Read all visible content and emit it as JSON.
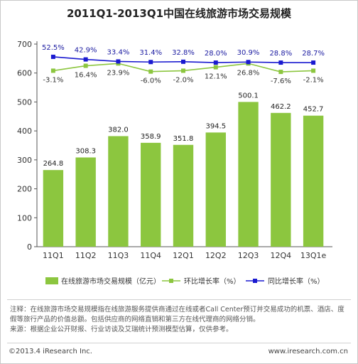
{
  "title": "2011Q1-2013Q1中国在线旅游市场交易规模",
  "chart_data": {
    "type": "bar",
    "categories": [
      "11Q1",
      "11Q2",
      "11Q3",
      "11Q4",
      "12Q1",
      "12Q2",
      "12Q3",
      "12Q4",
      "13Q1e"
    ],
    "ylim": [
      0,
      700
    ],
    "yticks": [
      "0",
      "100",
      "200",
      "300",
      "400",
      "500",
      "600",
      "700"
    ],
    "grid": false,
    "legend_position": "bottom",
    "series": [
      {
        "name": "在线旅游市场交易规模（亿元）",
        "kind": "bar",
        "color": "#8cc63f",
        "values": [
          264.8,
          308.3,
          382.0,
          358.9,
          351.8,
          394.5,
          500.1,
          462.2,
          452.7
        ],
        "labels": [
          "264.8",
          "308.3",
          "382.0",
          "358.9",
          "351.8",
          "394.5",
          "500.1",
          "462.2",
          "452.7"
        ]
      },
      {
        "name": "环比增长率（%）",
        "kind": "line",
        "color": "#8cc63f",
        "rates": [
          "-3.1%",
          "16.4%",
          "23.9%",
          "-6.0%",
          "-2.0%",
          "12.1%",
          "26.8%",
          "-7.6%",
          "-2.1%"
        ],
        "plot_y": [
          608,
          625,
          633,
          605,
          608,
          620,
          633,
          604,
          608
        ]
      },
      {
        "name": "同比增长率（%）",
        "kind": "line",
        "color": "#1a1ad0",
        "rates": [
          "52.5%",
          "42.9%",
          "33.4%",
          "31.4%",
          "32.8%",
          "28.0%",
          "30.9%",
          "28.8%",
          "28.7%"
        ],
        "plot_y": [
          656,
          647,
          640,
          638,
          639,
          636,
          638,
          636,
          636
        ]
      }
    ]
  },
  "note": {
    "line1": "注释：在线旅游市场交易规模指在线旅游服务提供商通过在线或者Call Center预订并交易成功的机票、酒店、度假等旅行产品的价值总额。包括供应商的网络直销和第三方在线代理商的网络分销。",
    "line2": "来源：根据企业公开财报、行业访谈及艾瑞统计预测模型估算，仅供参考。"
  },
  "footer": {
    "copyright": "©2013.4 iResearch Inc.",
    "url": "www.iresearch.com.cn"
  }
}
